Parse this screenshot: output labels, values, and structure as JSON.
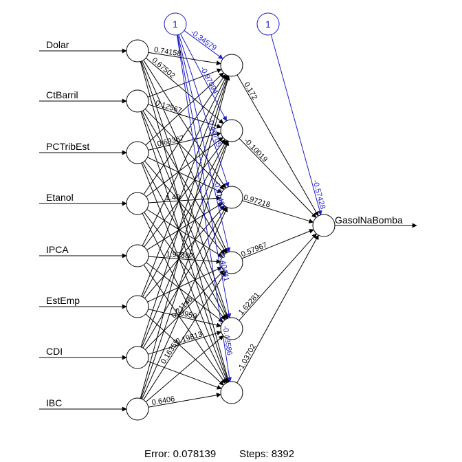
{
  "inputs": [
    "Dolar",
    "CtBarril",
    "PCTribEst",
    "Etanol",
    "IPCA",
    "EstEmp",
    "CDI",
    "IBC"
  ],
  "output": "GasolNaBomba",
  "bias_label": "1",
  "colors": {
    "weight": "#000000",
    "bias": "#1c1cc8"
  },
  "weights": {
    "input_hidden_visible": [
      "0.74158",
      "0.67502",
      "0.12567",
      "0.69367",
      "1.49",
      "1.97382",
      "1.8959",
      "0.21146",
      "0.19813",
      "0.16359",
      "0.6406"
    ],
    "hidden_bias": [
      "-0.34579",
      "-0.97094",
      "-0.46705",
      "-0.31486",
      "-0.40441",
      "-0.43586"
    ],
    "hidden_output": [
      "0.172",
      "-0.10019",
      "0.97218",
      "0.57967",
      "1.62281",
      "-1.03702"
    ],
    "output_bias": "-0.57428"
  },
  "footer": {
    "error": "Error: 0.078139",
    "steps": "Steps: 8392"
  }
}
